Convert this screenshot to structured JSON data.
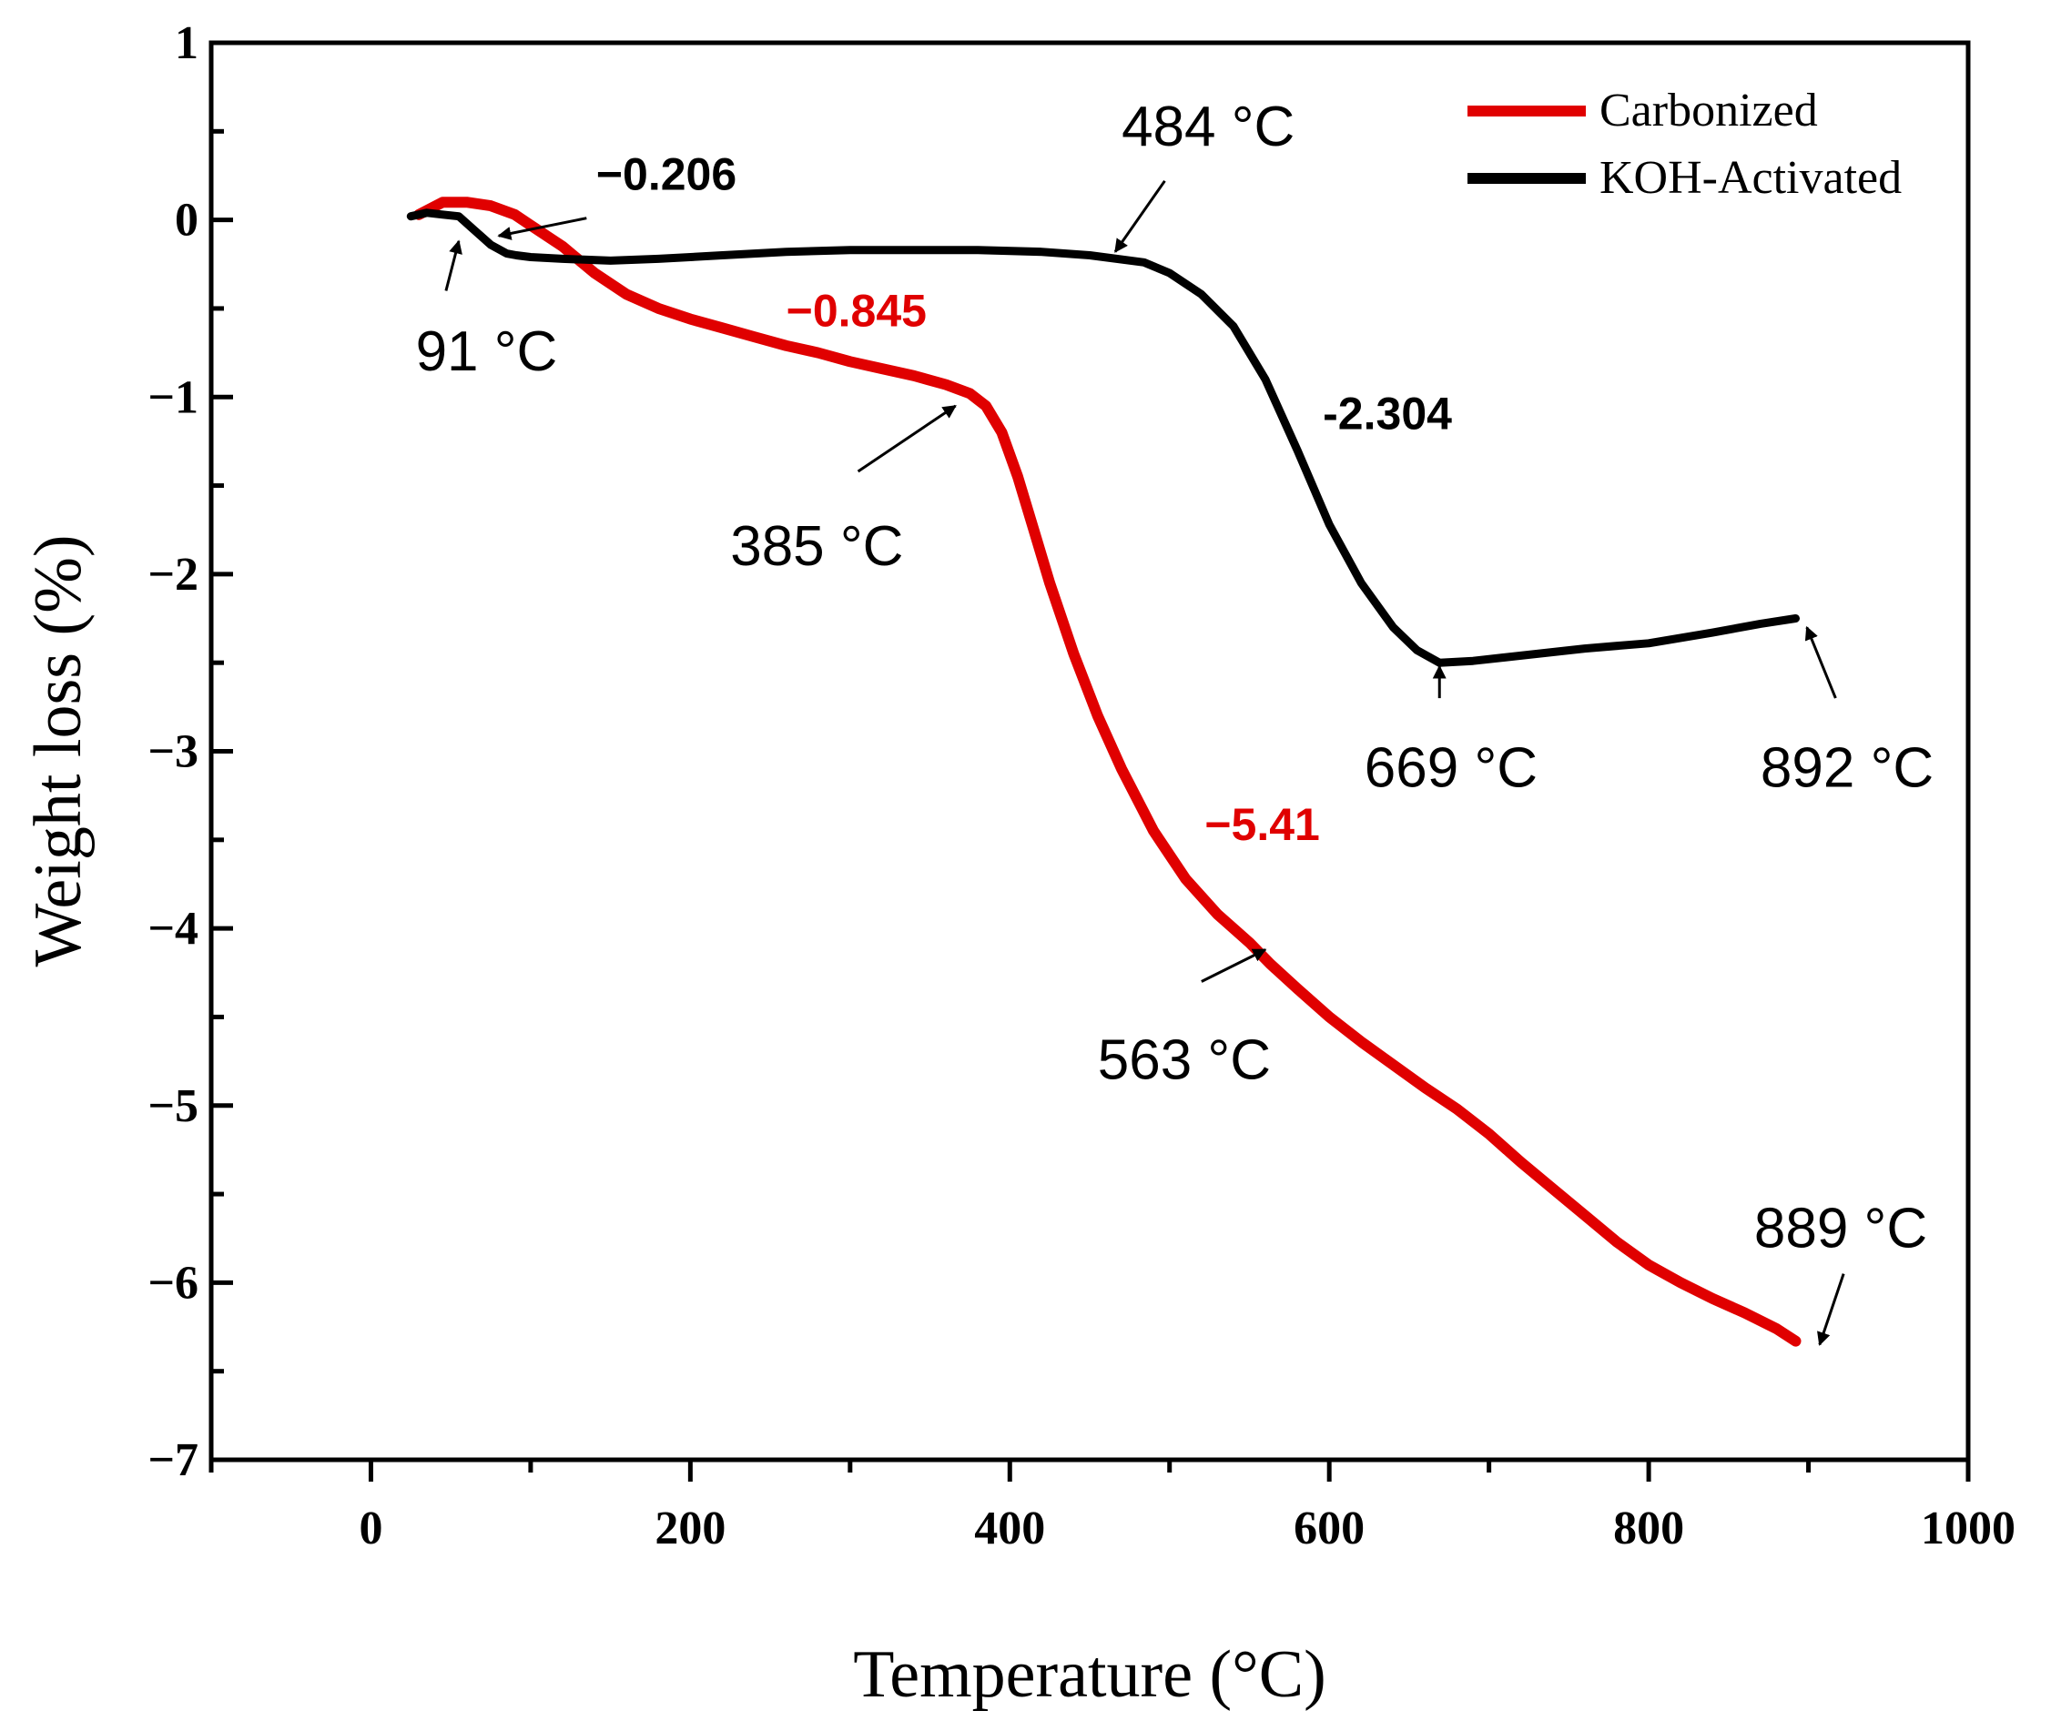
{
  "chart_data": {
    "type": "line",
    "title": "",
    "xlabel": "Temperature (°C)",
    "ylabel": "Weight loss (%)",
    "xlim": [
      -100,
      1000
    ],
    "ylim": [
      -7,
      1
    ],
    "x_ticks": [
      0,
      200,
      400,
      600,
      800,
      1000
    ],
    "y_ticks": [
      1,
      0,
      -1,
      -2,
      -3,
      -4,
      -5,
      -6,
      -7
    ],
    "x_tick_labels": [
      "0",
      "200",
      "400",
      "600",
      "800",
      "1000"
    ],
    "y_tick_labels": [
      "1",
      "0",
      "−1",
      "−2",
      "−3",
      "−4",
      "−5",
      "−6",
      "−7"
    ],
    "grid": false,
    "legend_position": "top-right",
    "series": [
      {
        "name": "Carbonized",
        "color": "#e00000",
        "x": [
          30,
          45,
          60,
          75,
          90,
          100,
          120,
          140,
          160,
          180,
          200,
          220,
          240,
          260,
          280,
          300,
          320,
          340,
          360,
          375,
          385,
          395,
          405,
          415,
          425,
          440,
          455,
          470,
          490,
          510,
          530,
          550,
          563,
          580,
          600,
          620,
          640,
          660,
          680,
          700,
          720,
          740,
          760,
          780,
          800,
          820,
          840,
          860,
          880,
          892
        ],
        "y": [
          0.03,
          0.1,
          0.1,
          0.08,
          0.03,
          -0.03,
          -0.15,
          -0.3,
          -0.42,
          -0.5,
          -0.56,
          -0.61,
          -0.66,
          -0.71,
          -0.75,
          -0.8,
          -0.84,
          -0.88,
          -0.93,
          -0.98,
          -1.05,
          -1.2,
          -1.45,
          -1.75,
          -2.05,
          -2.45,
          -2.8,
          -3.1,
          -3.45,
          -3.72,
          -3.92,
          -4.08,
          -4.2,
          -4.34,
          -4.5,
          -4.64,
          -4.77,
          -4.9,
          -5.02,
          -5.16,
          -5.32,
          -5.47,
          -5.62,
          -5.77,
          -5.9,
          -6.0,
          -6.09,
          -6.17,
          -6.26,
          -6.33
        ]
      },
      {
        "name": "KOH-Activated",
        "color": "#000000",
        "x": [
          25,
          35,
          45,
          55,
          65,
          75,
          85,
          91,
          100,
          120,
          150,
          180,
          220,
          260,
          300,
          340,
          380,
          420,
          450,
          484,
          500,
          520,
          540,
          560,
          580,
          600,
          620,
          640,
          655,
          669,
          690,
          720,
          760,
          800,
          840,
          870,
          892
        ],
        "y": [
          0.02,
          0.04,
          0.03,
          0.02,
          -0.06,
          -0.14,
          -0.19,
          -0.2,
          -0.21,
          -0.22,
          -0.23,
          -0.22,
          -0.2,
          -0.18,
          -0.17,
          -0.17,
          -0.17,
          -0.18,
          -0.2,
          -0.24,
          -0.3,
          -0.42,
          -0.6,
          -0.9,
          -1.3,
          -1.72,
          -2.05,
          -2.3,
          -2.43,
          -2.5,
          -2.49,
          -2.46,
          -2.42,
          -2.39,
          -2.33,
          -2.28,
          -2.25
        ]
      }
    ],
    "annotations": [
      {
        "text": "484 °C",
        "kind": "temp",
        "color": "#000000",
        "label_at": [
          470,
          0.42
        ],
        "arrow_from": [
          497,
          0.22
        ],
        "arrow_to": [
          466,
          -0.18
        ]
      },
      {
        "text": "91 °C",
        "kind": "temp",
        "color": "#000000",
        "label_at": [
          28,
          -0.85
        ],
        "arrow_from": [
          47,
          -0.4
        ],
        "arrow_to": [
          55,
          -0.12
        ]
      },
      {
        "text": "−0.206",
        "kind": "loss",
        "color": "#000000",
        "label_at": [
          141,
          0.17
        ],
        "arrow_from": [
          135,
          0.01
        ],
        "arrow_to": [
          80,
          -0.09
        ]
      },
      {
        "text": "−0.845",
        "kind": "loss",
        "color": "#e00000",
        "label_at": [
          260,
          -0.6
        ],
        "arrow_from": null,
        "arrow_to": null
      },
      {
        "text": "385 °C",
        "kind": "temp",
        "color": "#000000",
        "label_at": [
          225,
          -1.95
        ],
        "arrow_from": [
          305,
          -1.42
        ],
        "arrow_to": [
          366,
          -1.05
        ]
      },
      {
        "text": "-2.304",
        "kind": "loss",
        "color": "#000000",
        "label_at": [
          596,
          -1.18
        ],
        "arrow_from": null,
        "arrow_to": null
      },
      {
        "text": "669 °C",
        "kind": "temp",
        "color": "#000000",
        "label_at": [
          622,
          -3.2
        ],
        "arrow_from": [
          669,
          -2.7
        ],
        "arrow_to": [
          669,
          -2.52
        ]
      },
      {
        "text": "892 °C",
        "kind": "temp",
        "color": "#000000",
        "label_at": [
          870,
          -3.2
        ],
        "arrow_from": [
          917,
          -2.7
        ],
        "arrow_to": [
          899,
          -2.3
        ]
      },
      {
        "text": "−5.41",
        "kind": "loss",
        "color": "#e00000",
        "label_at": [
          522,
          -3.5
        ],
        "arrow_from": null,
        "arrow_to": null
      },
      {
        "text": "563 °C",
        "kind": "temp",
        "color": "#000000",
        "label_at": [
          455,
          -4.85
        ],
        "arrow_from": [
          520,
          -4.3
        ],
        "arrow_to": [
          560,
          -4.12
        ]
      },
      {
        "text": "889 °C",
        "kind": "temp",
        "color": "#000000",
        "label_at": [
          866,
          -5.8
        ],
        "arrow_from": [
          922,
          -5.95
        ],
        "arrow_to": [
          907,
          -6.35
        ]
      }
    ]
  }
}
